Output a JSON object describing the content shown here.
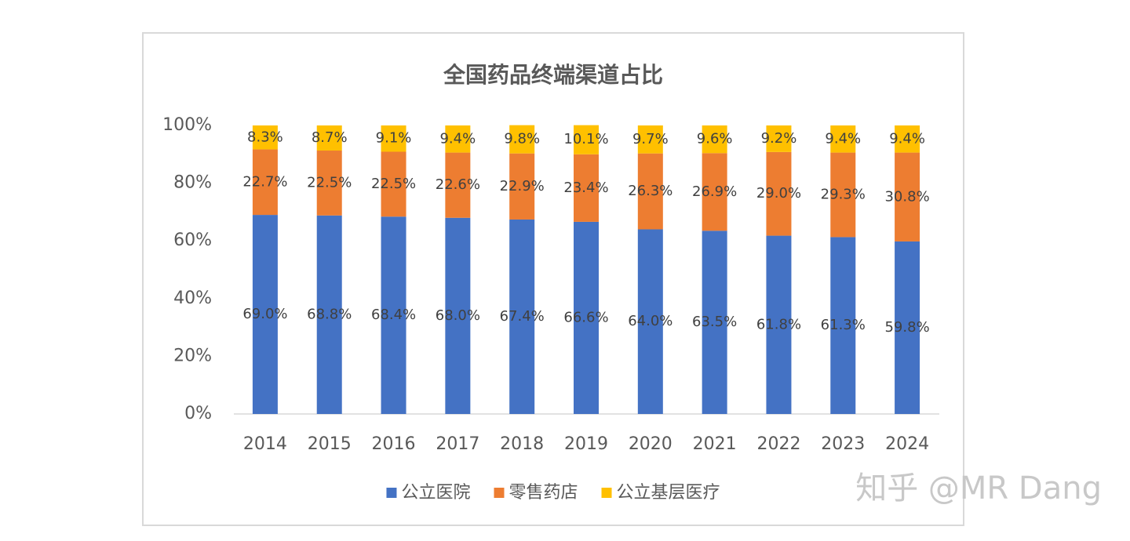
{
  "chart_data": {
    "type": "stacked_bar",
    "title": "全国药品终端渠道占比",
    "categories": [
      "2014",
      "2015",
      "2016",
      "2017",
      "2018",
      "2019",
      "2020",
      "2021",
      "2022",
      "2023",
      "2024"
    ],
    "series": [
      {
        "name": "公立医院",
        "color": "#4472c4",
        "values": [
          69.0,
          68.8,
          68.4,
          68.0,
          67.4,
          66.6,
          64.0,
          63.5,
          61.8,
          61.3,
          59.8
        ],
        "value_labels": [
          "69.0%",
          "68.8%",
          "68.4%",
          "68.0%",
          "67.4%",
          "66.6%",
          "64.0%",
          "63.5%",
          "61.8%",
          "61.3%",
          "59.8%"
        ]
      },
      {
        "name": "零售药店",
        "color": "#ed7d31",
        "values": [
          22.7,
          22.5,
          22.5,
          22.6,
          22.9,
          23.4,
          26.3,
          26.9,
          29.0,
          29.3,
          30.8
        ],
        "value_labels": [
          "22.7%",
          "22.5%",
          "22.5%",
          "22.6%",
          "22.9%",
          "23.4%",
          "26.3%",
          "26.9%",
          "29.0%",
          "29.3%",
          "30.8%"
        ]
      },
      {
        "name": "公立基层医疗",
        "color": "#ffc000",
        "values": [
          8.3,
          8.7,
          9.1,
          9.4,
          9.8,
          10.1,
          9.7,
          9.6,
          9.2,
          9.4,
          9.4
        ],
        "value_labels": [
          "8.3%",
          "8.7%",
          "9.1%",
          "9.4%",
          "9.8%",
          "10.1%",
          "9.7%",
          "9.6%",
          "9.2%",
          "9.4%",
          "9.4%"
        ]
      }
    ],
    "ylim": [
      0,
      100
    ],
    "yticks": [
      {
        "value": 0,
        "label": "0%"
      },
      {
        "value": 20,
        "label": "20%"
      },
      {
        "value": 40,
        "label": "40%"
      },
      {
        "value": 60,
        "label": "60%"
      },
      {
        "value": 80,
        "label": "80%"
      },
      {
        "value": 100,
        "label": "100%"
      }
    ],
    "grid": false,
    "legend": "bottom"
  },
  "watermark": "知乎 @MR Dang"
}
